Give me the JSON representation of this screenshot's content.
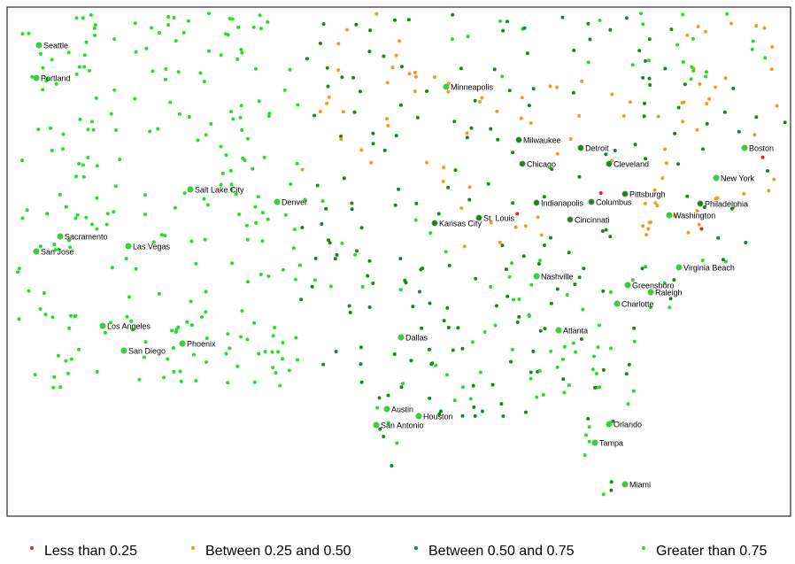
{
  "legend": [
    {
      "label": "Less than 0.25",
      "color": "#e8231c"
    },
    {
      "label": "Between 0.25 and 0.50",
      "color": "#f39c1a"
    },
    {
      "label": "Between 0.50 and 0.75",
      "color": "#138a13"
    },
    {
      "label": "Greater than 0.75",
      "color": "#22e022"
    }
  ],
  "cities": [
    {
      "name": "Seattle",
      "category": 3
    },
    {
      "name": "Portland",
      "category": 3
    },
    {
      "name": "Sacramento",
      "category": 3
    },
    {
      "name": "San Jose",
      "category": 3
    },
    {
      "name": "Las Vegas",
      "category": 3
    },
    {
      "name": "Los Angeles",
      "category": 3
    },
    {
      "name": "San Diego",
      "category": 3
    },
    {
      "name": "Phoenix",
      "category": 3
    },
    {
      "name": "Salt Lake City",
      "category": 3
    },
    {
      "name": "Denver",
      "category": 3
    },
    {
      "name": "Minneapolis",
      "category": 3
    },
    {
      "name": "Milwaukee",
      "category": 2
    },
    {
      "name": "Detroit",
      "category": 2
    },
    {
      "name": "Chicago",
      "category": 2
    },
    {
      "name": "Cleveland",
      "category": 2
    },
    {
      "name": "Boston",
      "category": 3
    },
    {
      "name": "New York",
      "category": 3
    },
    {
      "name": "Pittsburgh",
      "category": 2
    },
    {
      "name": "Philadelphia",
      "category": 2
    },
    {
      "name": "Indianapolis",
      "category": 2
    },
    {
      "name": "Columbus",
      "category": 2
    },
    {
      "name": "Washington",
      "category": 3
    },
    {
      "name": "Kansas City",
      "category": 2
    },
    {
      "name": "St. Louis",
      "category": 2
    },
    {
      "name": "Cincinnati",
      "category": 2
    },
    {
      "name": "Virginia Beach",
      "category": 3
    },
    {
      "name": "Nashville",
      "category": 3
    },
    {
      "name": "Greensboro",
      "category": 3
    },
    {
      "name": "Raleigh",
      "category": 3
    },
    {
      "name": "Charlotte",
      "category": 3
    },
    {
      "name": "Atlanta",
      "category": 3
    },
    {
      "name": "Dallas",
      "category": 3
    },
    {
      "name": "Austin",
      "category": 3
    },
    {
      "name": "Houston",
      "category": 3
    },
    {
      "name": "San Antonio",
      "category": 3
    },
    {
      "name": "Orlando",
      "category": 3
    },
    {
      "name": "Tampa",
      "category": 3
    },
    {
      "name": "Miami",
      "category": 3
    }
  ]
}
